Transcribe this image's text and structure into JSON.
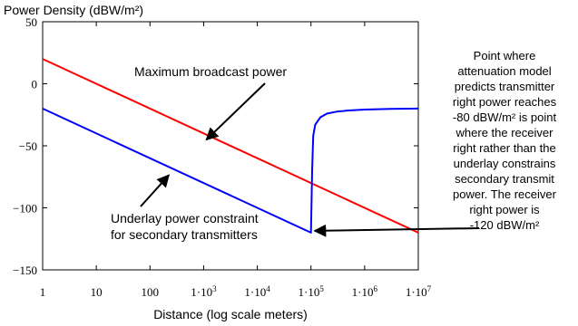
{
  "chart_data": {
    "type": "line",
    "ylabel": "Power Density (dBW/m²)",
    "xlabel": "Distance (log scale meters)",
    "x_scale": "log",
    "xlim": [
      1,
      10000000
    ],
    "ylim": [
      -150,
      50
    ],
    "grid": false,
    "x_ticks": [
      1,
      10,
      100,
      1000,
      10000,
      100000,
      1000000,
      10000000
    ],
    "x_tick_labels": [
      "1",
      "10",
      "100",
      "1·10",
      "1·10",
      "1·10",
      "1·10",
      "1·10"
    ],
    "x_tick_exponents": [
      "",
      "",
      "",
      "3",
      "4",
      "5",
      "6",
      "7"
    ],
    "y_ticks": [
      50,
      0,
      -50,
      -100,
      -150
    ],
    "y_tick_labels": [
      "50",
      "0",
      "−50",
      "−100",
      "−150"
    ],
    "series": [
      {
        "color": "#ff0000",
        "x": [
          1,
          10000000
        ],
        "y": [
          20,
          -120
        ]
      },
      {
        "color": "#0000ff",
        "x": [
          1,
          100000,
          100000,
          105000,
          110000,
          120000,
          150000,
          200000,
          300000,
          500000,
          1000000,
          3000000,
          10000000
        ],
        "y": [
          -20,
          -120,
          -120,
          -70,
          -42,
          -33,
          -27,
          -24,
          -22.5,
          -21.5,
          -20.8,
          -20.3,
          -20
        ]
      }
    ],
    "annotations": [
      {
        "text": "Maximum broadcast power",
        "arrow_to": {
          "x": 1000,
          "y": -40
        }
      },
      {
        "text_lines": [
          "Underlay power constraint",
          "for secondary transmitters"
        ],
        "arrow_to": {
          "x": 200,
          "y": -70
        }
      }
    ],
    "side_note": {
      "lines": [
        "Point where",
        "attenuation model",
        "predicts transmitter",
        "right power reaches",
        "-80 dBW/m² is point",
        "where the receiver",
        "right rather than the",
        "underlay constrains",
        "secondary transmit",
        "power.  The receiver",
        "right power is",
        "-120 dBW/m²"
      ],
      "arrow_to": {
        "x": 100000,
        "y": -120
      }
    }
  }
}
